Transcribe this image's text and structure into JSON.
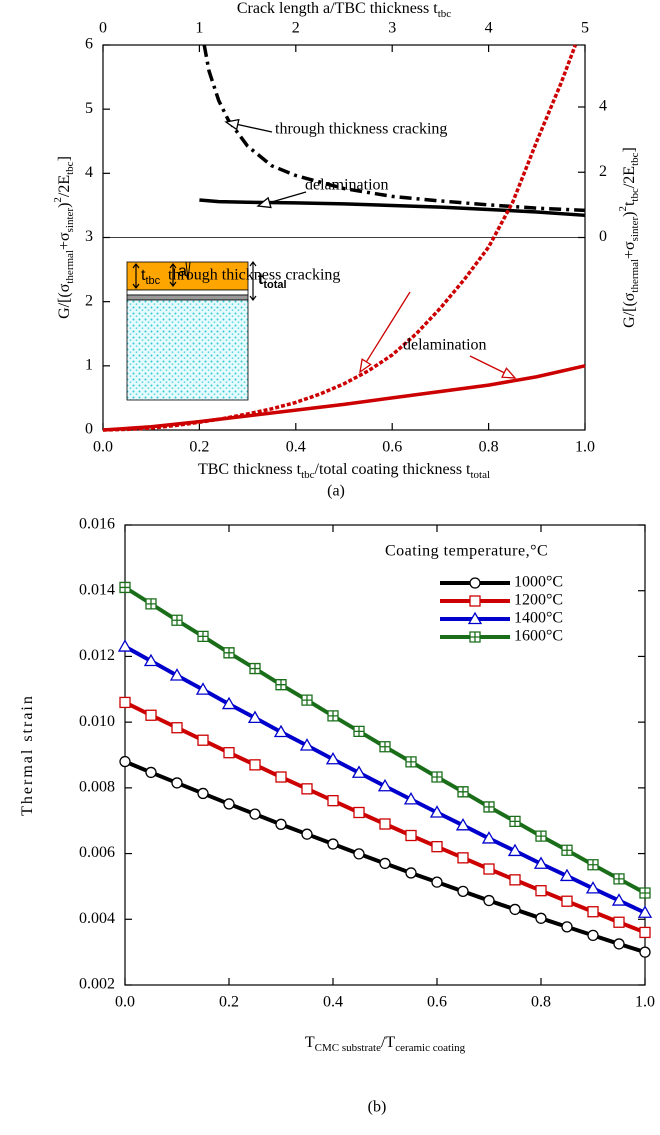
{
  "chart_data": [
    {
      "type": "line",
      "panel_label": "(a)",
      "xlabel": [
        {
          "text": "TBC thickness t"
        },
        {
          "text": "tbc",
          "sub": true
        },
        {
          "text": "/total coating thickness t"
        },
        {
          "text": "total",
          "sub": true
        }
      ],
      "x2label": [
        {
          "text": "Crack length a/TBC thickness t"
        },
        {
          "text": "tbc",
          "sub": true
        }
      ],
      "ylabel": [
        {
          "text": "G/[(σ"
        },
        {
          "text": "thermal",
          "sub": true
        },
        {
          "text": "+σ"
        },
        {
          "text": "sinter",
          "sub": true
        },
        {
          "text": ")"
        },
        {
          "text": "2",
          "sup": true
        },
        {
          "text": "/2E"
        },
        {
          "text": "tbc",
          "sub": true
        },
        {
          "text": "]"
        }
      ],
      "y2label": [
        {
          "text": "G/[(σ"
        },
        {
          "text": "thermal",
          "sub": true
        },
        {
          "text": "+σ"
        },
        {
          "text": "sinter",
          "sub": true
        },
        {
          "text": ")"
        },
        {
          "text": "2",
          "sup": true
        },
        {
          "text": "t"
        },
        {
          "text": "tbc",
          "sub": true
        },
        {
          "text": "/2E"
        },
        {
          "text": "tbc",
          "sub": true
        },
        {
          "text": "]"
        }
      ],
      "xlim": [
        0,
        1
      ],
      "xticks": [
        {
          "value": 0,
          "label": "0.0"
        },
        {
          "value": 0.2,
          "label": "0.2"
        },
        {
          "value": 0.4,
          "label": "0.4"
        },
        {
          "value": 0.6,
          "label": "0.6"
        },
        {
          "value": 0.8,
          "label": "0.8"
        },
        {
          "value": 1,
          "label": "1.0"
        }
      ],
      "x2lim": [
        0,
        5
      ],
      "x2ticks": [
        0,
        1,
        2,
        3,
        4,
        5
      ],
      "ylim": [
        0,
        6
      ],
      "yticks": [
        0,
        1,
        2,
        3,
        4,
        5,
        6
      ],
      "y2lim": [
        -5.9,
        5.9
      ],
      "y2ticks": [
        0,
        2,
        4
      ],
      "series": [
        {
          "name": "through thickness cracking",
          "color": "#000000",
          "style": "dashdot",
          "axis": "y2",
          "x": [
            1.05,
            1.1,
            1.2,
            1.3,
            1.5,
            1.75,
            2,
            2.5,
            3,
            3.5,
            4,
            4.5,
            5
          ],
          "values": [
            5.9,
            5.1,
            4.2,
            3.6,
            2.8,
            2.2,
            1.9,
            1.5,
            1.26,
            1.12,
            1.0,
            0.9,
            0.83
          ]
        },
        {
          "name": "delamination",
          "color": "#000000",
          "style": "solid",
          "axis": "y2",
          "x": [
            1.0,
            1.2,
            1.5,
            2,
            2.5,
            3,
            3.5,
            4,
            4.5,
            5
          ],
          "values": [
            1.15,
            1.1,
            1.08,
            1.06,
            1.03,
            0.98,
            0.93,
            0.86,
            0.78,
            0.68
          ]
        },
        {
          "name": "through thickness cracking",
          "color": "#cc0000",
          "style": "dotted",
          "x": [
            0,
            0.05,
            0.1,
            0.15,
            0.2,
            0.25,
            0.3,
            0.35,
            0.4,
            0.45,
            0.5,
            0.55,
            0.6,
            0.65,
            0.7,
            0.75,
            0.8,
            0.85,
            0.9,
            0.95,
            0.98
          ],
          "values": [
            0,
            0.01,
            0.03,
            0.07,
            0.12,
            0.18,
            0.25,
            0.33,
            0.43,
            0.56,
            0.72,
            0.92,
            1.17,
            1.5,
            1.9,
            2.35,
            2.85,
            3.55,
            4.5,
            5.4,
            6.0
          ]
        },
        {
          "name": "delamination",
          "color": "#cc0000",
          "style": "solid",
          "x": [
            0,
            0.1,
            0.2,
            0.3,
            0.4,
            0.5,
            0.6,
            0.7,
            0.8,
            0.9,
            1.0
          ],
          "values": [
            0,
            0.05,
            0.13,
            0.22,
            0.31,
            0.4,
            0.5,
            0.6,
            0.7,
            0.83,
            1.0
          ]
        }
      ],
      "annotations": [
        {
          "text": "through thickness cracking",
          "color": "#000000"
        },
        {
          "text": "delamination",
          "color": "#000000"
        },
        {
          "text": "through thickness cracking",
          "color": "#cc0000"
        },
        {
          "text": "delamination",
          "color": "#cc0000"
        }
      ],
      "inset_labels": [
        [
          {
            "text": "t"
          },
          {
            "text": "tbc",
            "sub": true
          }
        ],
        [
          {
            "text": "a"
          }
        ],
        [
          {
            "text": "t"
          },
          {
            "text": "total",
            "sub": true
          }
        ]
      ]
    },
    {
      "type": "line",
      "panel_label": "(b)",
      "xlabel": [
        {
          "text": "T"
        },
        {
          "text": "CMC substrate",
          "sub": true
        },
        {
          "text": "/T"
        },
        {
          "text": "ceramic coating",
          "sub": true
        }
      ],
      "ylabel": [
        {
          "text": "Thermal strain"
        }
      ],
      "legend_title": "Coating temperature,°C",
      "legend": "upper right",
      "xlim": [
        0,
        1
      ],
      "xticks": [
        {
          "value": 0,
          "label": "0.0"
        },
        {
          "value": 0.2,
          "label": "0.2"
        },
        {
          "value": 0.4,
          "label": "0.4"
        },
        {
          "value": 0.6,
          "label": "0.6"
        },
        {
          "value": 0.8,
          "label": "0.8"
        },
        {
          "value": 1,
          "label": "1.0"
        }
      ],
      "ylim": [
        0.002,
        0.016
      ],
      "yticks": [
        0.002,
        0.004,
        0.006,
        0.008,
        {
          "value": 0.01,
          "label": "0.010"
        },
        0.012,
        0.014,
        0.016
      ],
      "x": [
        0,
        0.05,
        0.1,
        0.15,
        0.2,
        0.25,
        0.3,
        0.35,
        0.4,
        0.45,
        0.5,
        0.55,
        0.6,
        0.65,
        0.7,
        0.75,
        0.8,
        0.85,
        0.9,
        0.95,
        1.0
      ],
      "series": [
        {
          "name": "1000°C",
          "color": "#000000",
          "marker": "circle",
          "values": [
            0.0088,
            0.00847,
            0.00815,
            0.00783,
            0.00751,
            0.0072,
            0.00689,
            0.00659,
            0.00629,
            0.00599,
            0.0057,
            0.00541,
            0.00513,
            0.00485,
            0.00457,
            0.0043,
            0.00403,
            0.00377,
            0.00351,
            0.00325,
            0.003
          ]
        },
        {
          "name": "1200°C",
          "color": "#cc0000",
          "marker": "square",
          "values": [
            0.0106,
            0.01021,
            0.00983,
            0.00945,
            0.00907,
            0.0087,
            0.00833,
            0.00797,
            0.00761,
            0.00725,
            0.0069,
            0.00655,
            0.00621,
            0.00587,
            0.00553,
            0.0052,
            0.00487,
            0.00455,
            0.00423,
            0.00391,
            0.0036
          ]
        },
        {
          "name": "1400°C",
          "color": "#0000cc",
          "marker": "triangle",
          "values": [
            0.0123,
            0.01186,
            0.01142,
            0.01099,
            0.01055,
            0.01013,
            0.0097,
            0.00929,
            0.00887,
            0.00846,
            0.00805,
            0.00765,
            0.00725,
            0.00686,
            0.00646,
            0.00608,
            0.00569,
            0.00532,
            0.00494,
            0.00457,
            0.0042
          ]
        },
        {
          "name": "1600°C",
          "color": "#1a6e1a",
          "marker": "gridsquare",
          "values": [
            0.0141,
            0.0136,
            0.0131,
            0.01261,
            0.01211,
            0.01163,
            0.01114,
            0.01067,
            0.01019,
            0.00972,
            0.00925,
            0.00879,
            0.00833,
            0.00788,
            0.00742,
            0.00698,
            0.00653,
            0.0061,
            0.00566,
            0.00523,
            0.0048
          ]
        }
      ]
    }
  ]
}
